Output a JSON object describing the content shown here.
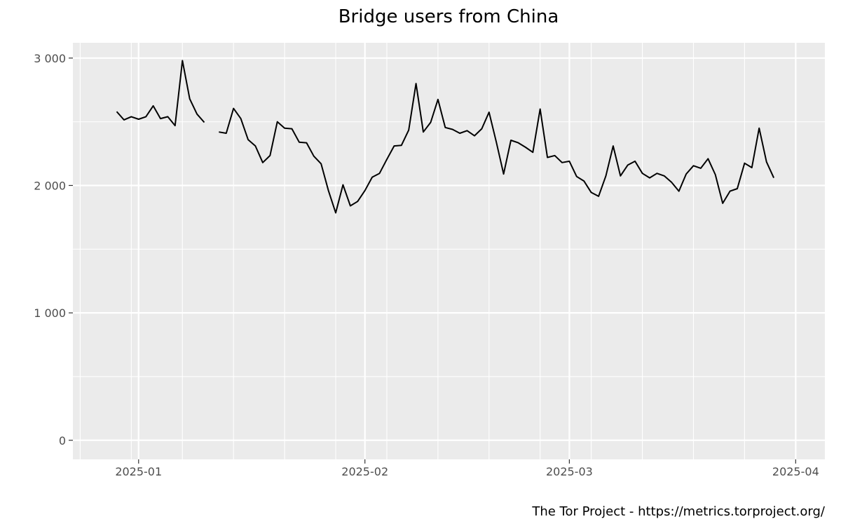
{
  "chart_data": {
    "type": "line",
    "title": "Bridge users from China",
    "caption": "The Tor Project - https://metrics.torproject.org/",
    "xlabel": "",
    "ylabel": "",
    "ylim": [
      -150,
      3120
    ],
    "xlim": [
      "2024-12-23",
      "2025-04-05"
    ],
    "grid": true,
    "y_ticks": [
      {
        "value": 0,
        "label": "0"
      },
      {
        "value": 1000,
        "label": "1 000"
      },
      {
        "value": 2000,
        "label": "2 000"
      },
      {
        "value": 3000,
        "label": "3 000"
      }
    ],
    "x_ticks": [
      {
        "date": "2025-01-01",
        "label": "2025-01"
      },
      {
        "date": "2025-02-01",
        "label": "2025-02"
      },
      {
        "date": "2025-03-01",
        "label": "2025-03"
      },
      {
        "date": "2025-04-01",
        "label": "2025-04"
      }
    ],
    "colors": {
      "line": "#000000",
      "panel": "#ebebeb",
      "grid": "#ffffff"
    },
    "series": [
      {
        "points": [
          [
            "2024-12-29",
            2580
          ],
          [
            "2024-12-30",
            2515
          ],
          [
            "2024-12-31",
            2540
          ],
          [
            "2025-01-01",
            2520
          ],
          [
            "2025-01-02",
            2540
          ],
          [
            "2025-01-03",
            2625
          ],
          [
            "2025-01-04",
            2525
          ],
          [
            "2025-01-05",
            2540
          ],
          [
            "2025-01-06",
            2470
          ],
          [
            "2025-01-07",
            2980
          ],
          [
            "2025-01-08",
            2680
          ],
          [
            "2025-01-09",
            2560
          ],
          [
            "2025-01-10",
            2495
          ],
          [
            "2025-01-11",
            null
          ],
          [
            "2025-01-12",
            2420
          ],
          [
            "2025-01-13",
            2410
          ],
          [
            "2025-01-14",
            2605
          ],
          [
            "2025-01-15",
            2525
          ],
          [
            "2025-01-16",
            2360
          ],
          [
            "2025-01-17",
            2310
          ],
          [
            "2025-01-18",
            2180
          ],
          [
            "2025-01-19",
            2235
          ],
          [
            "2025-01-20",
            2500
          ],
          [
            "2025-01-21",
            2450
          ],
          [
            "2025-01-22",
            2445
          ],
          [
            "2025-01-23",
            2340
          ],
          [
            "2025-01-24",
            2335
          ],
          [
            "2025-01-25",
            2230
          ],
          [
            "2025-01-26",
            2170
          ],
          [
            "2025-01-27",
            1960
          ],
          [
            "2025-01-28",
            1785
          ],
          [
            "2025-01-29",
            2005
          ],
          [
            "2025-01-30",
            1840
          ],
          [
            "2025-01-31",
            1875
          ],
          [
            "2025-02-01",
            1960
          ],
          [
            "2025-02-02",
            2065
          ],
          [
            "2025-02-03",
            2095
          ],
          [
            "2025-02-04",
            2205
          ],
          [
            "2025-02-05",
            2310
          ],
          [
            "2025-02-06",
            2315
          ],
          [
            "2025-02-07",
            2435
          ],
          [
            "2025-02-08",
            2800
          ],
          [
            "2025-02-09",
            2420
          ],
          [
            "2025-02-10",
            2495
          ],
          [
            "2025-02-11",
            2675
          ],
          [
            "2025-02-12",
            2455
          ],
          [
            "2025-02-13",
            2440
          ],
          [
            "2025-02-14",
            2410
          ],
          [
            "2025-02-15",
            2430
          ],
          [
            "2025-02-16",
            2390
          ],
          [
            "2025-02-17",
            2445
          ],
          [
            "2025-02-18",
            2575
          ],
          [
            "2025-02-19",
            2340
          ],
          [
            "2025-02-20",
            2090
          ],
          [
            "2025-02-21",
            2355
          ],
          [
            "2025-02-22",
            2335
          ],
          [
            "2025-02-23",
            2300
          ],
          [
            "2025-02-24",
            2260
          ],
          [
            "2025-02-25",
            2600
          ],
          [
            "2025-02-26",
            2220
          ],
          [
            "2025-02-27",
            2235
          ],
          [
            "2025-02-28",
            2180
          ],
          [
            "2025-03-01",
            2190
          ],
          [
            "2025-03-02",
            2070
          ],
          [
            "2025-03-03",
            2035
          ],
          [
            "2025-03-04",
            1945
          ],
          [
            "2025-03-05",
            1915
          ],
          [
            "2025-03-06",
            2075
          ],
          [
            "2025-03-07",
            2310
          ],
          [
            "2025-03-08",
            2075
          ],
          [
            "2025-03-09",
            2160
          ],
          [
            "2025-03-10",
            2190
          ],
          [
            "2025-03-11",
            2095
          ],
          [
            "2025-03-12",
            2060
          ],
          [
            "2025-03-13",
            2095
          ],
          [
            "2025-03-14",
            2075
          ],
          [
            "2025-03-15",
            2025
          ],
          [
            "2025-03-16",
            1955
          ],
          [
            "2025-03-17",
            2090
          ],
          [
            "2025-03-18",
            2155
          ],
          [
            "2025-03-19",
            2135
          ],
          [
            "2025-03-20",
            2210
          ],
          [
            "2025-03-21",
            2085
          ],
          [
            "2025-03-22",
            1860
          ],
          [
            "2025-03-23",
            1955
          ],
          [
            "2025-03-24",
            1975
          ],
          [
            "2025-03-25",
            2175
          ],
          [
            "2025-03-26",
            2140
          ],
          [
            "2025-03-27",
            2450
          ],
          [
            "2025-03-28",
            2185
          ],
          [
            "2025-03-29",
            2060
          ]
        ]
      }
    ]
  }
}
